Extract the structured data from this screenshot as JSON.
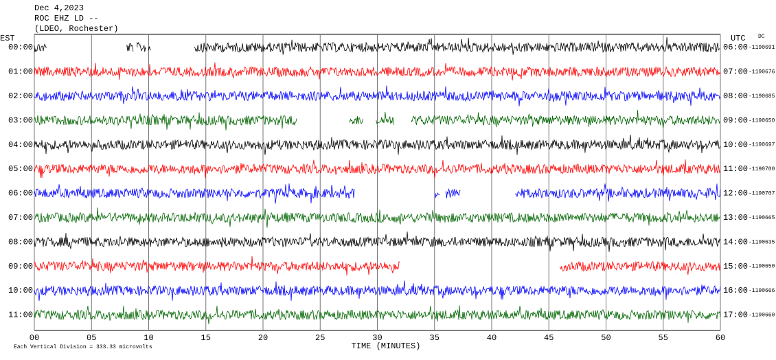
{
  "chart_data": {
    "type": "helicorder",
    "header": [
      "Dec 4,2023",
      "ROC EHZ LD --",
      "(LDEO, Rochester)"
    ],
    "left_axis_label": "EST",
    "right_axis_label": "UTC",
    "offset_label": "DC",
    "xlabel": "TIME (MINUTES)",
    "footnote": "Each Vertical Division =  333.33 microvolts",
    "xlim": [
      0,
      60
    ],
    "xticks": [
      {
        "value": 0,
        "label": "00"
      },
      {
        "value": 5,
        "label": "05"
      },
      10,
      15,
      20,
      25,
      30,
      35,
      40,
      45,
      50,
      55,
      60
    ],
    "grid": true,
    "rows": [
      {
        "est": "00:00",
        "utc": "06:00",
        "dc": "-1190691",
        "color": "#000000",
        "segments": [
          [
            0,
            1.1
          ],
          [
            8.1,
            8.7
          ],
          [
            9.0,
            9.8
          ],
          [
            10.0,
            10.2
          ],
          [
            14,
            60
          ]
        ]
      },
      {
        "est": "01:00",
        "utc": "07:00",
        "dc": "-1190676",
        "color": "#ff0000",
        "segments": [
          [
            0,
            60
          ]
        ]
      },
      {
        "est": "02:00",
        "utc": "08:00",
        "dc": "-1190685",
        "color": "#0000ff",
        "segments": [
          [
            0,
            60
          ]
        ]
      },
      {
        "est": "03:00",
        "utc": "09:00",
        "dc": "-1190650",
        "color": "#006400",
        "segments": [
          [
            0,
            23
          ],
          [
            27.6,
            28.8
          ],
          [
            29.9,
            31.5
          ],
          [
            33,
            60
          ]
        ]
      },
      {
        "est": "04:00",
        "utc": "10:00",
        "dc": "-1190697",
        "color": "#000000",
        "segments": [
          [
            0,
            60
          ]
        ]
      },
      {
        "est": "05:00",
        "utc": "11:00",
        "dc": "-1190700",
        "color": "#ff0000",
        "segments": [
          [
            0,
            60
          ]
        ]
      },
      {
        "est": "06:00",
        "utc": "12:00",
        "dc": "-1190707",
        "color": "#0000ff",
        "segments": [
          [
            0,
            28
          ],
          [
            35.1,
            35.5
          ],
          [
            36,
            37.3
          ],
          [
            42.1,
            60
          ]
        ]
      },
      {
        "est": "07:00",
        "utc": "13:00",
        "dc": "-1190665",
        "color": "#006400",
        "segments": [
          [
            0,
            60
          ]
        ]
      },
      {
        "est": "08:00",
        "utc": "14:00",
        "dc": "-1190635",
        "color": "#000000",
        "segments": [
          [
            0,
            60
          ]
        ]
      },
      {
        "est": "09:00",
        "utc": "15:00",
        "dc": "-1190650",
        "color": "#ff0000",
        "segments": [
          [
            0,
            32
          ],
          [
            46,
            60
          ]
        ]
      },
      {
        "est": "10:00",
        "utc": "16:00",
        "dc": "-1190666",
        "color": "#0000ff",
        "segments": [
          [
            0,
            60
          ]
        ]
      },
      {
        "est": "11:00",
        "utc": "17:00",
        "dc": "-1190660",
        "color": "#006400",
        "segments": [
          [
            0,
            60
          ]
        ]
      }
    ]
  }
}
